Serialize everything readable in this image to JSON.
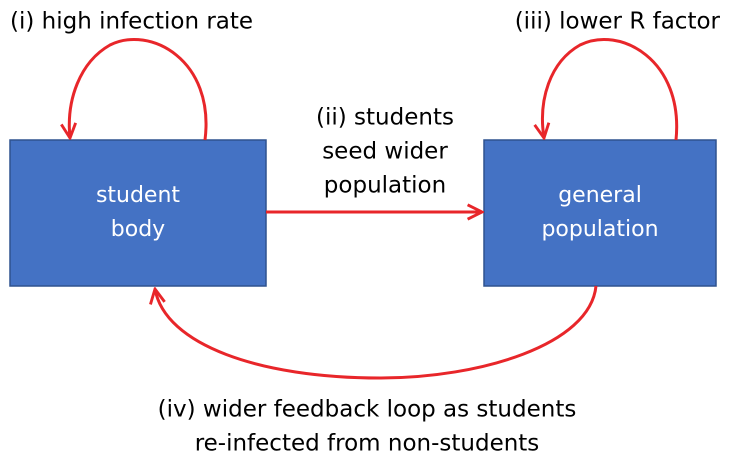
{
  "nodes": [
    {
      "label": [
        "student",
        "body"
      ]
    },
    {
      "label": [
        "general",
        "population"
      ]
    }
  ],
  "edges": [
    {
      "label": [
        "(i) high infection rate"
      ]
    },
    {
      "label": [
        "(ii) students",
        "seed wider",
        "population"
      ]
    },
    {
      "label": [
        "(iii) lower R factor"
      ]
    },
    {
      "label": [
        "(iv) wider feedback loop as students",
        "re-infected from non-students"
      ]
    }
  ]
}
